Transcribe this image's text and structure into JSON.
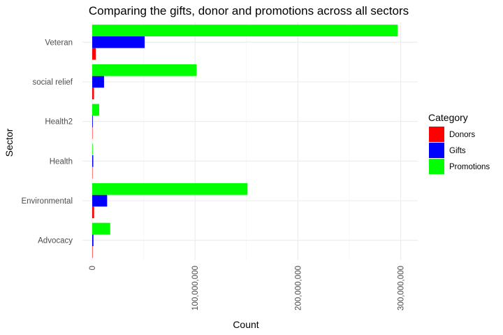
{
  "chart_data": {
    "type": "bar",
    "orientation": "horizontal",
    "title": "Comparing the gifts, donor and  promotions across all sectors",
    "xlabel": "Count",
    "ylabel": "Sector",
    "xlim": [
      0,
      310000000
    ],
    "xticks": [
      0,
      100000000,
      200000000,
      300000000
    ],
    "xtick_labels": [
      "0",
      "100,000,000",
      "200,000,000",
      "300,000,000"
    ],
    "grid": true,
    "legend_position": "right",
    "legend_title": "Category",
    "categories": [
      "Advocacy",
      "Environmental",
      "Health",
      "Health2",
      "social relief",
      "Veteran"
    ],
    "series": [
      {
        "name": "Donors",
        "color": "#ff0000",
        "values": [
          400000,
          1800000,
          300000,
          200000,
          1700000,
          3500000
        ]
      },
      {
        "name": "Gifts",
        "color": "#0000ff",
        "values": [
          1200000,
          14500000,
          1000000,
          600000,
          11500000,
          51000000
        ]
      },
      {
        "name": "Promotions",
        "color": "#00ff00",
        "values": [
          17500000,
          151000000,
          500000,
          6800000,
          101500000,
          297000000
        ]
      }
    ]
  }
}
